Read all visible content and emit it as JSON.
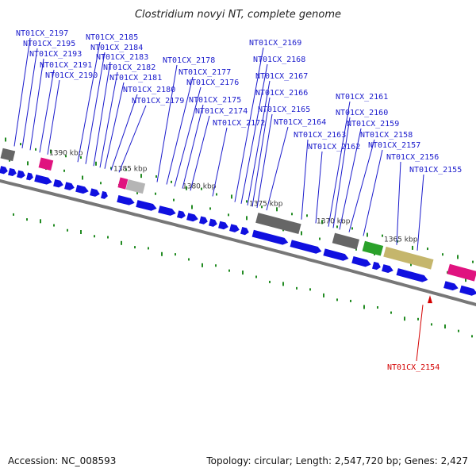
{
  "title": "Clostridium novyi NT, complete genome",
  "accession": "Accession: NC_008593",
  "summary": "Topology: circular; Length: 2,547,720 bp; Genes: 2,427",
  "colors": {
    "gene": "#1010e0",
    "gene_highlight": "#d40000",
    "label_line": "#1a1acc",
    "backbone": "#777777",
    "dots": "#228B22",
    "feature_gray": "#666666",
    "feature_magenta": "#e0137f",
    "feature_green": "#2aa12a",
    "feature_olive": "#c5b66c",
    "feature_lime": "#b8e04a"
  },
  "ticks": [
    "1390 kbp",
    "1385 kbp",
    "1380 kbp",
    "1375 kbp",
    "1370 kbp",
    "1365 kbp"
  ],
  "gene_labels": [
    "NT01CX_2197",
    "NT01CX_2195",
    "NT01CX_2193",
    "NT01CX_2191",
    "NT01CX_2190",
    "NT01CX_2185",
    "NT01CX_2184",
    "NT01CX_2183",
    "NT01CX_2182",
    "NT01CX_2181",
    "NT01CX_2180",
    "NT01CX_2179",
    "NT01CX_2178",
    "NT01CX_2177",
    "NT01CX_2176",
    "NT01CX_2175",
    "NT01CX_2174",
    "NT01CX_2172",
    "NT01CX_2169",
    "NT01CX_2168",
    "NT01CX_2167",
    "NT01CX_2166",
    "NT01CX_2165",
    "NT01CX_2164",
    "NT01CX_2163",
    "NT01CX_2162",
    "NT01CX_2161",
    "NT01CX_2160",
    "NT01CX_2159",
    "NT01CX_2158",
    "NT01CX_2157",
    "NT01CX_2156",
    "NT01CX_2155"
  ],
  "highlight_label": "NT01CX_2154"
}
